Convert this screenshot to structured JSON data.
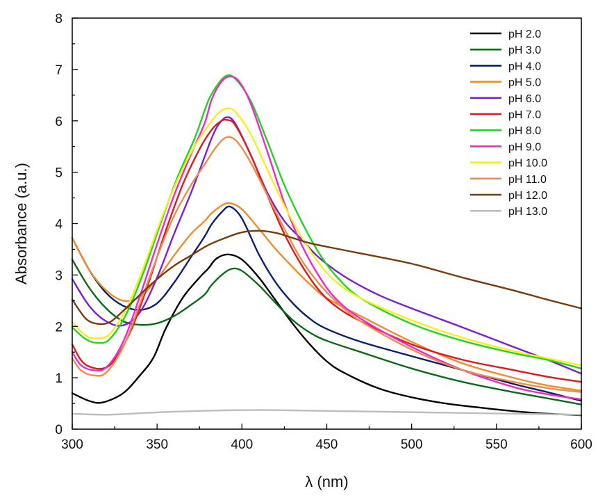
{
  "chart_data": {
    "type": "line",
    "title": "",
    "xlabel": "λ (nm)",
    "ylabel": "Absorbance (a.u.)",
    "xlim": [
      300,
      600
    ],
    "ylim": [
      0,
      8
    ],
    "xticks": [
      300,
      350,
      400,
      450,
      500,
      550,
      600
    ],
    "yticks": [
      0,
      1,
      2,
      3,
      4,
      5,
      6,
      7,
      8
    ],
    "grid": false,
    "legend_position": "top-right",
    "series": [
      {
        "name": "pH 2.0",
        "color": "#000000",
        "points": [
          [
            300,
            0.7
          ],
          [
            310,
            0.55
          ],
          [
            318,
            0.52
          ],
          [
            330,
            0.7
          ],
          [
            340,
            1.05
          ],
          [
            348,
            1.4
          ],
          [
            355,
            1.95
          ],
          [
            365,
            2.55
          ],
          [
            375,
            2.95
          ],
          [
            380,
            3.12
          ],
          [
            385,
            3.32
          ],
          [
            392,
            3.4
          ],
          [
            400,
            3.3
          ],
          [
            410,
            2.95
          ],
          [
            420,
            2.5
          ],
          [
            430,
            2.05
          ],
          [
            440,
            1.65
          ],
          [
            450,
            1.32
          ],
          [
            460,
            1.1
          ],
          [
            480,
            0.8
          ],
          [
            500,
            0.62
          ],
          [
            520,
            0.5
          ],
          [
            540,
            0.42
          ],
          [
            560,
            0.35
          ],
          [
            580,
            0.3
          ],
          [
            600,
            0.27
          ]
        ]
      },
      {
        "name": "pH 3.0",
        "color": "#0a6b16",
        "points": [
          [
            300,
            3.3
          ],
          [
            310,
            2.75
          ],
          [
            320,
            2.35
          ],
          [
            330,
            2.1
          ],
          [
            340,
            2.03
          ],
          [
            350,
            2.06
          ],
          [
            360,
            2.2
          ],
          [
            370,
            2.42
          ],
          [
            378,
            2.62
          ],
          [
            382,
            2.8
          ],
          [
            388,
            3.0
          ],
          [
            394,
            3.12
          ],
          [
            400,
            3.08
          ],
          [
            410,
            2.8
          ],
          [
            420,
            2.45
          ],
          [
            430,
            2.12
          ],
          [
            440,
            1.88
          ],
          [
            450,
            1.72
          ],
          [
            470,
            1.5
          ],
          [
            500,
            1.18
          ],
          [
            530,
            0.92
          ],
          [
            560,
            0.72
          ],
          [
            580,
            0.6
          ],
          [
            600,
            0.48
          ]
        ]
      },
      {
        "name": "pH 4.0",
        "color": "#08206e",
        "points": [
          [
            300,
            3.72
          ],
          [
            310,
            3.1
          ],
          [
            320,
            2.65
          ],
          [
            330,
            2.4
          ],
          [
            340,
            2.32
          ],
          [
            350,
            2.45
          ],
          [
            360,
            2.85
          ],
          [
            370,
            3.35
          ],
          [
            378,
            3.75
          ],
          [
            382,
            3.98
          ],
          [
            388,
            4.22
          ],
          [
            393,
            4.33
          ],
          [
            400,
            4.1
          ],
          [
            410,
            3.4
          ],
          [
            420,
            2.85
          ],
          [
            430,
            2.45
          ],
          [
            440,
            2.15
          ],
          [
            450,
            1.95
          ],
          [
            470,
            1.7
          ],
          [
            500,
            1.42
          ],
          [
            530,
            1.15
          ],
          [
            560,
            0.88
          ],
          [
            580,
            0.72
          ],
          [
            600,
            0.55
          ]
        ]
      },
      {
        "name": "pH 5.0",
        "color": "#f08c2a",
        "points": [
          [
            300,
            3.72
          ],
          [
            310,
            3.1
          ],
          [
            320,
            2.7
          ],
          [
            330,
            2.5
          ],
          [
            340,
            2.58
          ],
          [
            350,
            2.92
          ],
          [
            360,
            3.38
          ],
          [
            370,
            3.8
          ],
          [
            378,
            4.05
          ],
          [
            382,
            4.2
          ],
          [
            388,
            4.35
          ],
          [
            393,
            4.4
          ],
          [
            400,
            4.28
          ],
          [
            410,
            3.9
          ],
          [
            420,
            3.5
          ],
          [
            430,
            3.15
          ],
          [
            440,
            2.82
          ],
          [
            450,
            2.55
          ],
          [
            470,
            2.2
          ],
          [
            500,
            1.7
          ],
          [
            530,
            1.28
          ],
          [
            560,
            1.0
          ],
          [
            580,
            0.85
          ],
          [
            600,
            0.75
          ]
        ]
      },
      {
        "name": "pH 6.0",
        "color": "#7a1fd6",
        "points": [
          [
            300,
            2.92
          ],
          [
            310,
            2.4
          ],
          [
            320,
            2.1
          ],
          [
            330,
            2.02
          ],
          [
            340,
            2.28
          ],
          [
            350,
            2.95
          ],
          [
            360,
            3.8
          ],
          [
            370,
            4.6
          ],
          [
            378,
            5.3
          ],
          [
            382,
            5.65
          ],
          [
            386,
            5.92
          ],
          [
            391,
            6.07
          ],
          [
            396,
            5.95
          ],
          [
            405,
            5.35
          ],
          [
            415,
            4.6
          ],
          [
            425,
            4.05
          ],
          [
            435,
            3.7
          ],
          [
            445,
            3.35
          ],
          [
            460,
            2.98
          ],
          [
            480,
            2.62
          ],
          [
            500,
            2.35
          ],
          [
            530,
            1.98
          ],
          [
            560,
            1.6
          ],
          [
            580,
            1.35
          ],
          [
            600,
            1.08
          ]
        ]
      },
      {
        "name": "pH 7.0",
        "color": "#e01a1a",
        "points": [
          [
            300,
            1.65
          ],
          [
            305,
            1.35
          ],
          [
            310,
            1.22
          ],
          [
            318,
            1.18
          ],
          [
            325,
            1.35
          ],
          [
            335,
            1.95
          ],
          [
            345,
            2.85
          ],
          [
            355,
            3.85
          ],
          [
            365,
            4.75
          ],
          [
            375,
            5.45
          ],
          [
            382,
            5.82
          ],
          [
            387,
            5.98
          ],
          [
            391,
            6.02
          ],
          [
            396,
            5.92
          ],
          [
            405,
            5.35
          ],
          [
            415,
            4.55
          ],
          [
            425,
            3.8
          ],
          [
            435,
            3.2
          ],
          [
            445,
            2.72
          ],
          [
            455,
            2.4
          ],
          [
            470,
            2.1
          ],
          [
            500,
            1.65
          ],
          [
            530,
            1.35
          ],
          [
            560,
            1.15
          ],
          [
            580,
            1.02
          ],
          [
            600,
            0.92
          ]
        ]
      },
      {
        "name": "pH 8.0",
        "color": "#1ed61e",
        "points": [
          [
            300,
            1.98
          ],
          [
            308,
            1.75
          ],
          [
            315,
            1.68
          ],
          [
            322,
            1.75
          ],
          [
            332,
            2.25
          ],
          [
            342,
            3.05
          ],
          [
            352,
            4.0
          ],
          [
            362,
            4.9
          ],
          [
            372,
            5.65
          ],
          [
            378,
            6.2
          ],
          [
            381,
            6.45
          ],
          [
            386,
            6.72
          ],
          [
            391,
            6.88
          ],
          [
            396,
            6.82
          ],
          [
            405,
            6.4
          ],
          [
            415,
            5.6
          ],
          [
            425,
            4.75
          ],
          [
            435,
            4.05
          ],
          [
            445,
            3.45
          ],
          [
            455,
            3.0
          ],
          [
            470,
            2.55
          ],
          [
            500,
            2.05
          ],
          [
            530,
            1.72
          ],
          [
            560,
            1.48
          ],
          [
            580,
            1.35
          ],
          [
            600,
            1.18
          ]
        ]
      },
      {
        "name": "pH 9.0",
        "color": "#f028d0",
        "points": [
          [
            300,
            1.5
          ],
          [
            305,
            1.25
          ],
          [
            312,
            1.15
          ],
          [
            320,
            1.2
          ],
          [
            330,
            1.7
          ],
          [
            340,
            2.6
          ],
          [
            350,
            3.6
          ],
          [
            360,
            4.55
          ],
          [
            370,
            5.35
          ],
          [
            378,
            5.95
          ],
          [
            382,
            6.4
          ],
          [
            387,
            6.72
          ],
          [
            392,
            6.86
          ],
          [
            398,
            6.78
          ],
          [
            405,
            6.35
          ],
          [
            415,
            5.4
          ],
          [
            425,
            4.4
          ],
          [
            435,
            3.6
          ],
          [
            445,
            3.0
          ],
          [
            455,
            2.55
          ],
          [
            470,
            2.15
          ],
          [
            500,
            1.6
          ],
          [
            530,
            1.15
          ],
          [
            560,
            0.82
          ],
          [
            580,
            0.68
          ],
          [
            600,
            0.58
          ]
        ]
      },
      {
        "name": "pH 10.0",
        "color": "#f7ee1e",
        "points": [
          [
            300,
            2.08
          ],
          [
            308,
            1.82
          ],
          [
            315,
            1.77
          ],
          [
            322,
            1.85
          ],
          [
            332,
            2.35
          ],
          [
            342,
            3.15
          ],
          [
            352,
            4.05
          ],
          [
            362,
            4.85
          ],
          [
            372,
            5.5
          ],
          [
            380,
            5.9
          ],
          [
            386,
            6.15
          ],
          [
            391,
            6.24
          ],
          [
            396,
            6.18
          ],
          [
            405,
            5.75
          ],
          [
            415,
            5.05
          ],
          [
            425,
            4.35
          ],
          [
            435,
            3.75
          ],
          [
            445,
            3.25
          ],
          [
            455,
            2.88
          ],
          [
            470,
            2.55
          ],
          [
            500,
            2.12
          ],
          [
            530,
            1.78
          ],
          [
            560,
            1.52
          ],
          [
            580,
            1.38
          ],
          [
            600,
            1.24
          ]
        ]
      },
      {
        "name": "pH 11.0",
        "color": "#f08c4a",
        "points": [
          [
            300,
            1.38
          ],
          [
            305,
            1.15
          ],
          [
            312,
            1.05
          ],
          [
            320,
            1.1
          ],
          [
            330,
            1.6
          ],
          [
            340,
            2.45
          ],
          [
            350,
            3.35
          ],
          [
            360,
            4.15
          ],
          [
            370,
            4.75
          ],
          [
            378,
            5.15
          ],
          [
            385,
            5.5
          ],
          [
            391,
            5.68
          ],
          [
            397,
            5.6
          ],
          [
            405,
            5.2
          ],
          [
            415,
            4.55
          ],
          [
            425,
            3.9
          ],
          [
            435,
            3.3
          ],
          [
            445,
            2.85
          ],
          [
            455,
            2.5
          ],
          [
            470,
            2.1
          ],
          [
            500,
            1.55
          ],
          [
            530,
            1.15
          ],
          [
            560,
            0.92
          ],
          [
            580,
            0.8
          ],
          [
            600,
            0.72
          ]
        ]
      },
      {
        "name": "pH 12.0",
        "color": "#7a3b0c",
        "points": [
          [
            300,
            2.52
          ],
          [
            308,
            2.15
          ],
          [
            315,
            2.05
          ],
          [
            322,
            2.08
          ],
          [
            330,
            2.3
          ],
          [
            340,
            2.62
          ],
          [
            350,
            2.92
          ],
          [
            360,
            3.18
          ],
          [
            370,
            3.38
          ],
          [
            380,
            3.58
          ],
          [
            390,
            3.72
          ],
          [
            400,
            3.83
          ],
          [
            410,
            3.86
          ],
          [
            420,
            3.82
          ],
          [
            430,
            3.72
          ],
          [
            440,
            3.62
          ],
          [
            450,
            3.55
          ],
          [
            470,
            3.42
          ],
          [
            500,
            3.22
          ],
          [
            530,
            2.95
          ],
          [
            560,
            2.7
          ],
          [
            580,
            2.52
          ],
          [
            600,
            2.35
          ]
        ]
      },
      {
        "name": "pH 13.0",
        "color": "#bdbdbd",
        "points": [
          [
            300,
            0.3
          ],
          [
            320,
            0.28
          ],
          [
            340,
            0.31
          ],
          [
            360,
            0.34
          ],
          [
            380,
            0.36
          ],
          [
            400,
            0.37
          ],
          [
            420,
            0.37
          ],
          [
            440,
            0.36
          ],
          [
            460,
            0.35
          ],
          [
            480,
            0.34
          ],
          [
            500,
            0.33
          ],
          [
            520,
            0.32
          ],
          [
            540,
            0.31
          ],
          [
            560,
            0.3
          ],
          [
            580,
            0.29
          ],
          [
            600,
            0.28
          ]
        ]
      }
    ]
  }
}
